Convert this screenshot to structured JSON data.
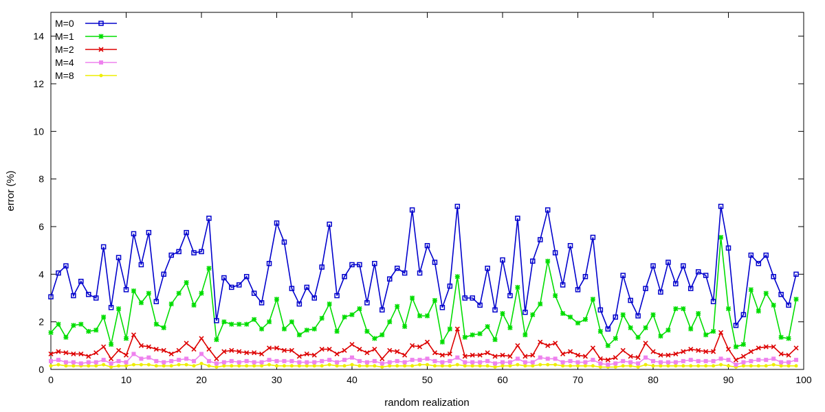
{
  "chart_data": {
    "type": "line",
    "title": "",
    "xlabel": "random realization",
    "ylabel": "error (%)",
    "xlim": [
      0,
      100
    ],
    "ylim": [
      0,
      15
    ],
    "xticks": [
      0,
      10,
      20,
      30,
      40,
      50,
      60,
      70,
      80,
      90,
      100
    ],
    "yticks": [
      0,
      2,
      4,
      6,
      8,
      10,
      12,
      14
    ],
    "grid": false,
    "legend_position": "top-left",
    "x": [
      0,
      1,
      2,
      3,
      4,
      5,
      6,
      7,
      8,
      9,
      10,
      11,
      12,
      13,
      14,
      15,
      16,
      17,
      18,
      19,
      20,
      21,
      22,
      23,
      24,
      25,
      26,
      27,
      28,
      29,
      30,
      31,
      32,
      33,
      34,
      35,
      36,
      37,
      38,
      39,
      40,
      41,
      42,
      43,
      44,
      45,
      46,
      47,
      48,
      49,
      50,
      51,
      52,
      53,
      54,
      55,
      56,
      57,
      58,
      59,
      60,
      61,
      62,
      63,
      64,
      65,
      66,
      67,
      68,
      69,
      70,
      71,
      72,
      73,
      74,
      75,
      76,
      77,
      78,
      79,
      80,
      81,
      82,
      83,
      84,
      85,
      86,
      87,
      88,
      89,
      90,
      91,
      92,
      93,
      94,
      95,
      96,
      97,
      98,
      99
    ],
    "series": [
      {
        "name": "M=0",
        "color": "#0000cc",
        "marker": "open-square",
        "values": [
          3.05,
          4.05,
          4.35,
          3.1,
          3.7,
          3.15,
          3.0,
          5.15,
          2.6,
          4.7,
          3.35,
          5.7,
          4.4,
          5.75,
          2.85,
          4.0,
          4.8,
          4.95,
          5.75,
          4.9,
          4.95,
          6.35,
          2.05,
          3.85,
          3.45,
          3.55,
          3.9,
          3.2,
          2.8,
          4.45,
          6.15,
          5.35,
          3.4,
          2.75,
          3.45,
          3.0,
          4.3,
          6.1,
          3.1,
          3.9,
          4.4,
          4.4,
          2.8,
          4.45,
          2.5,
          3.8,
          4.25,
          4.05,
          6.7,
          4.05,
          5.2,
          4.5,
          2.6,
          3.5,
          6.85,
          3.0,
          3.0,
          2.7,
          4.25,
          2.5,
          4.6,
          3.1,
          6.35,
          2.4,
          4.55,
          5.45,
          6.7,
          4.9,
          3.55,
          5.2,
          3.35,
          3.9,
          5.55,
          2.5,
          1.7,
          2.2,
          3.95,
          2.9,
          2.25,
          3.4,
          4.35,
          3.25,
          4.5,
          3.6,
          4.35,
          3.4,
          4.1,
          3.95,
          2.85,
          6.85,
          5.1,
          1.85,
          2.3,
          4.8,
          4.45,
          4.8,
          3.9,
          3.15,
          2.7,
          4.0
        ]
      },
      {
        "name": "M=1",
        "color": "#00dd00",
        "marker": "star",
        "values": [
          1.55,
          1.9,
          1.35,
          1.85,
          1.9,
          1.6,
          1.65,
          2.2,
          1.05,
          2.55,
          1.3,
          3.3,
          2.8,
          3.2,
          1.9,
          1.75,
          2.75,
          3.2,
          3.65,
          2.7,
          3.2,
          4.25,
          1.25,
          2.0,
          1.9,
          1.9,
          1.9,
          2.1,
          1.7,
          2.0,
          2.95,
          1.7,
          2.0,
          1.45,
          1.65,
          1.7,
          2.15,
          2.75,
          1.6,
          2.2,
          2.3,
          2.55,
          1.6,
          1.3,
          1.45,
          2.0,
          2.65,
          1.8,
          3.0,
          2.25,
          2.25,
          2.9,
          1.15,
          1.7,
          3.9,
          1.35,
          1.45,
          1.5,
          1.8,
          1.25,
          2.35,
          1.75,
          3.45,
          1.45,
          2.3,
          2.75,
          4.55,
          3.1,
          2.35,
          2.2,
          1.95,
          2.1,
          2.95,
          1.6,
          1.0,
          1.3,
          2.3,
          1.75,
          1.35,
          1.75,
          2.3,
          1.4,
          1.65,
          2.55,
          2.55,
          1.7,
          2.35,
          1.45,
          1.6,
          5.55,
          2.55,
          0.95,
          1.05,
          3.35,
          2.45,
          3.2,
          2.7,
          1.35,
          1.3,
          2.95
        ]
      },
      {
        "name": "M=2",
        "color": "#dd0000",
        "marker": "cross",
        "values": [
          0.65,
          0.75,
          0.7,
          0.65,
          0.65,
          0.55,
          0.7,
          0.95,
          0.45,
          0.8,
          0.6,
          1.45,
          1.0,
          0.95,
          0.85,
          0.8,
          0.65,
          0.8,
          1.1,
          0.85,
          1.3,
          0.85,
          0.45,
          0.75,
          0.8,
          0.75,
          0.7,
          0.7,
          0.65,
          0.9,
          0.9,
          0.8,
          0.8,
          0.55,
          0.65,
          0.6,
          0.85,
          0.85,
          0.65,
          0.8,
          1.05,
          0.85,
          0.7,
          0.85,
          0.45,
          0.8,
          0.75,
          0.6,
          1.0,
          0.95,
          1.15,
          0.7,
          0.6,
          0.65,
          1.7,
          0.55,
          0.6,
          0.6,
          0.7,
          0.55,
          0.6,
          0.55,
          1.0,
          0.55,
          0.6,
          1.15,
          1.0,
          1.1,
          0.65,
          0.75,
          0.6,
          0.55,
          0.9,
          0.45,
          0.4,
          0.5,
          0.8,
          0.55,
          0.5,
          1.1,
          0.75,
          0.6,
          0.6,
          0.65,
          0.75,
          0.85,
          0.8,
          0.75,
          0.75,
          1.55,
          0.85,
          0.4,
          0.55,
          0.75,
          0.9,
          0.95,
          0.95,
          0.65,
          0.6,
          0.9
        ]
      },
      {
        "name": "M=4",
        "color": "#ee82ee",
        "marker": "filled-square",
        "values": [
          0.35,
          0.4,
          0.3,
          0.3,
          0.25,
          0.3,
          0.3,
          0.4,
          0.25,
          0.35,
          0.3,
          0.65,
          0.45,
          0.5,
          0.35,
          0.3,
          0.35,
          0.4,
          0.45,
          0.35,
          0.65,
          0.35,
          0.25,
          0.3,
          0.35,
          0.3,
          0.35,
          0.3,
          0.3,
          0.4,
          0.35,
          0.35,
          0.35,
          0.3,
          0.3,
          0.3,
          0.35,
          0.4,
          0.3,
          0.4,
          0.5,
          0.35,
          0.3,
          0.35,
          0.25,
          0.3,
          0.35,
          0.3,
          0.4,
          0.4,
          0.45,
          0.35,
          0.3,
          0.35,
          0.5,
          0.3,
          0.3,
          0.3,
          0.35,
          0.25,
          0.3,
          0.3,
          0.45,
          0.3,
          0.3,
          0.5,
          0.45,
          0.45,
          0.3,
          0.35,
          0.3,
          0.3,
          0.4,
          0.25,
          0.2,
          0.25,
          0.35,
          0.3,
          0.25,
          0.5,
          0.35,
          0.3,
          0.3,
          0.3,
          0.35,
          0.4,
          0.35,
          0.35,
          0.35,
          0.45,
          0.4,
          0.2,
          0.3,
          0.35,
          0.4,
          0.4,
          0.45,
          0.3,
          0.3,
          0.4
        ]
      },
      {
        "name": "M=8",
        "color": "#eeee00",
        "marker": "filled-circle",
        "values": [
          0.15,
          0.2,
          0.15,
          0.15,
          0.15,
          0.15,
          0.15,
          0.2,
          0.1,
          0.15,
          0.15,
          0.2,
          0.2,
          0.2,
          0.15,
          0.15,
          0.15,
          0.2,
          0.2,
          0.15,
          0.25,
          0.15,
          0.1,
          0.15,
          0.15,
          0.15,
          0.15,
          0.15,
          0.15,
          0.2,
          0.15,
          0.15,
          0.15,
          0.15,
          0.15,
          0.15,
          0.15,
          0.2,
          0.15,
          0.15,
          0.2,
          0.15,
          0.15,
          0.15,
          0.1,
          0.15,
          0.15,
          0.15,
          0.15,
          0.2,
          0.2,
          0.15,
          0.15,
          0.15,
          0.2,
          0.15,
          0.15,
          0.15,
          0.15,
          0.1,
          0.15,
          0.15,
          0.2,
          0.15,
          0.15,
          0.2,
          0.2,
          0.2,
          0.15,
          0.15,
          0.15,
          0.15,
          0.15,
          0.1,
          0.1,
          0.1,
          0.15,
          0.15,
          0.1,
          0.2,
          0.15,
          0.15,
          0.15,
          0.15,
          0.15,
          0.15,
          0.15,
          0.15,
          0.15,
          0.2,
          0.15,
          0.1,
          0.15,
          0.15,
          0.15,
          0.15,
          0.2,
          0.15,
          0.15,
          0.15
        ]
      }
    ]
  }
}
